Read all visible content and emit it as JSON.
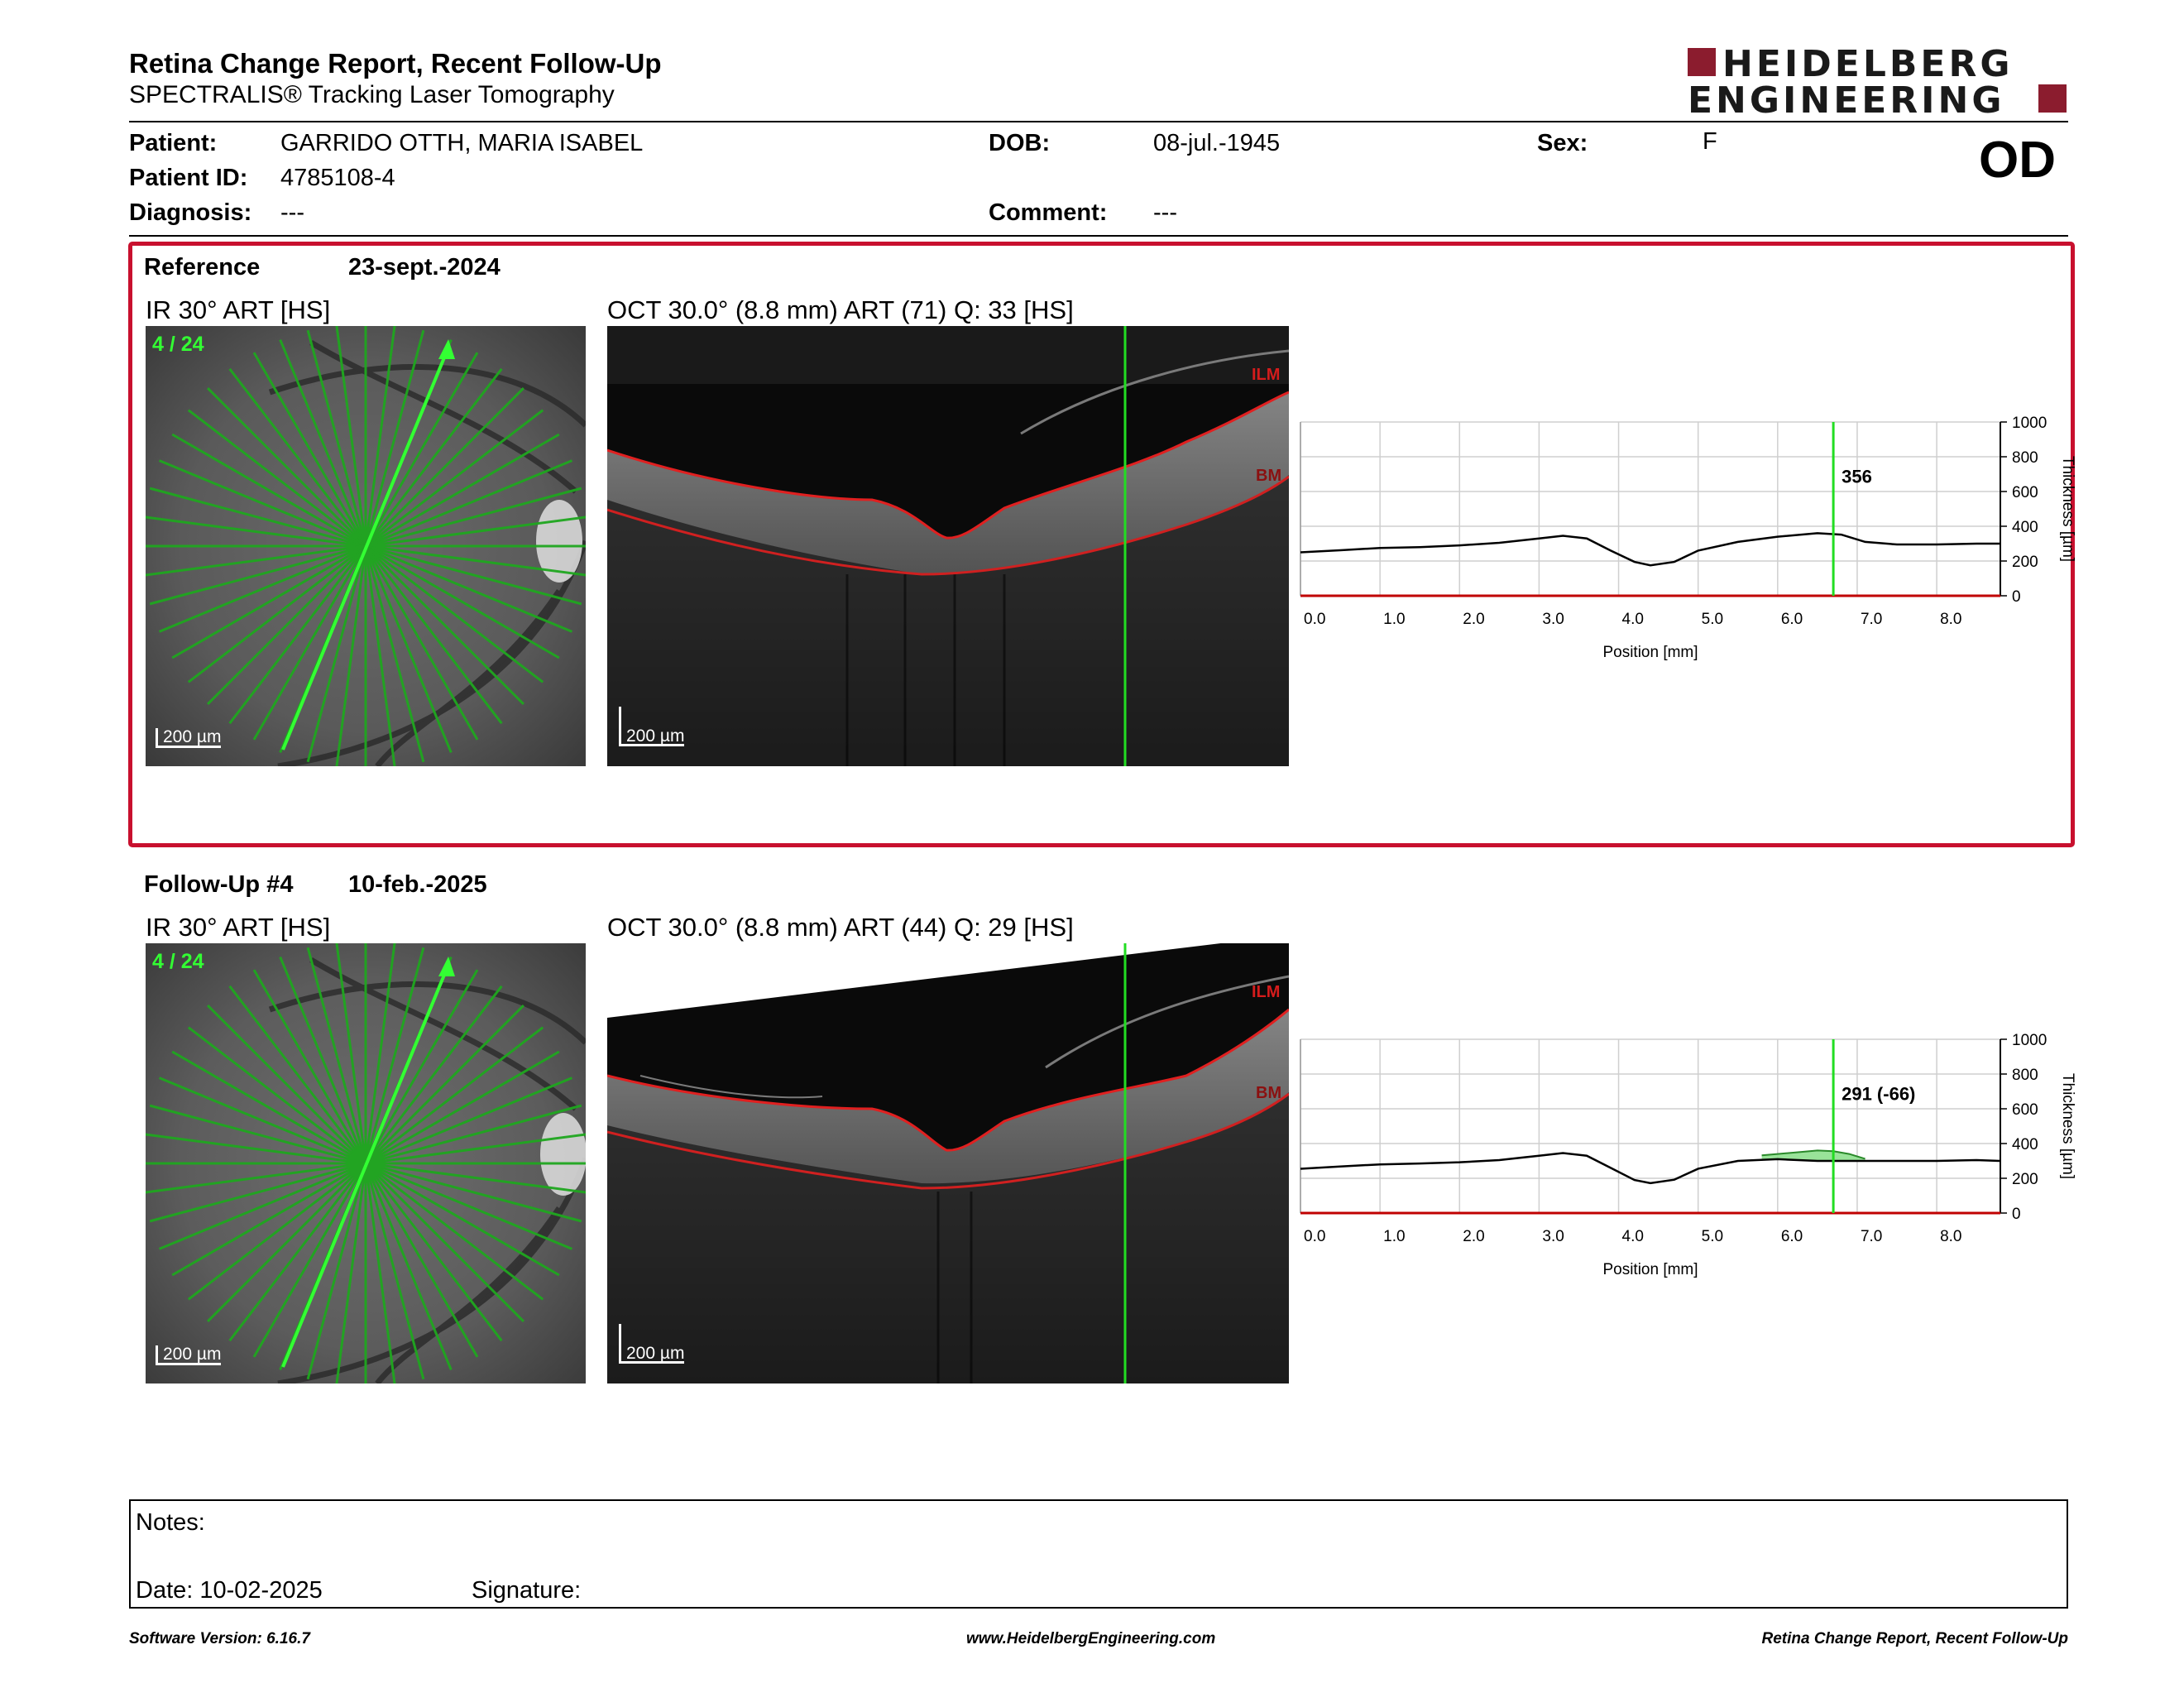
{
  "header": {
    "title": "Retina Change Report, Recent Follow-Up",
    "subtitle": "SPECTRALIS® Tracking Laser Tomography",
    "logo_line1": "HEIDELBERG",
    "logo_line2": "ENGINEERING",
    "eye": "OD"
  },
  "patient": {
    "patient_label": "Patient:",
    "patient_value": "GARRIDO OTTH, MARIA ISABEL",
    "dob_label": "DOB:",
    "dob_value": "08-jul.-1945",
    "sex_label": "Sex:",
    "sex_value": "F",
    "id_label": "Patient ID:",
    "id_value": "4785108-4",
    "diagnosis_label": "Diagnosis:",
    "diagnosis_value": "---",
    "comment_label": "Comment:",
    "comment_value": "---"
  },
  "reference": {
    "label": "Reference",
    "date": "23-sept.-2024",
    "ir_title": "IR 30° ART [HS]",
    "scan_counter": "4 / 24",
    "scale": "200 µm",
    "oct_title": "OCT 30.0° (8.8 mm) ART (71) Q: 33 [HS]",
    "ilm": "ILM",
    "bm": "BM",
    "readout": "356"
  },
  "followup": {
    "label": "Follow-Up #4",
    "date": "10-feb.-2025",
    "ir_title": "IR 30° ART [HS]",
    "scan_counter": "4 / 24",
    "scale": "200 µm",
    "oct_title": "OCT 30.0° (8.8 mm) ART (44) Q: 29 [HS]",
    "ilm": "ILM",
    "bm": "BM",
    "readout": "291 (-66)"
  },
  "chart_data": [
    {
      "type": "line",
      "xlabel": "Position [mm]",
      "ylabel": "Thickness [µm]",
      "xlim": [
        0,
        8.8
      ],
      "ylim": [
        0,
        1000
      ],
      "x_ticks": [
        "0.0",
        "1.0",
        "2.0",
        "3.0",
        "4.0",
        "5.0",
        "6.0",
        "7.0",
        "8.0"
      ],
      "y_ticks": [
        "0",
        "200",
        "400",
        "600",
        "800",
        "1000"
      ],
      "grid": true,
      "cursor_x": 6.7,
      "cursor_label": "356",
      "series": [
        {
          "x": [
            0,
            0.5,
            1.0,
            1.5,
            2.0,
            2.5,
            3.0,
            3.3,
            3.6,
            3.9,
            4.2,
            4.4,
            4.7,
            5.0,
            5.5,
            6.0,
            6.5,
            6.8,
            7.1,
            7.5,
            8.0,
            8.5,
            8.8
          ],
          "values": [
            250,
            262,
            275,
            280,
            290,
            305,
            330,
            345,
            330,
            260,
            195,
            175,
            195,
            260,
            310,
            340,
            360,
            352,
            310,
            295,
            295,
            300,
            300
          ]
        }
      ]
    },
    {
      "type": "line",
      "xlabel": "Position [mm]",
      "ylabel": "Thickness [µm]",
      "xlim": [
        0,
        8.8
      ],
      "ylim": [
        0,
        1000
      ],
      "x_ticks": [
        "0.0",
        "1.0",
        "2.0",
        "3.0",
        "4.0",
        "5.0",
        "6.0",
        "7.0",
        "8.0"
      ],
      "y_ticks": [
        "0",
        "200",
        "400",
        "600",
        "800",
        "1000"
      ],
      "grid": true,
      "cursor_x": 6.7,
      "cursor_label": "291 (-66)",
      "series": [
        {
          "x": [
            0,
            0.5,
            1.0,
            1.5,
            2.0,
            2.5,
            3.0,
            3.3,
            3.6,
            3.9,
            4.2,
            4.4,
            4.7,
            5.0,
            5.5,
            6.0,
            6.5,
            6.8,
            7.1,
            7.5,
            8.0,
            8.5,
            8.8
          ],
          "values": [
            255,
            268,
            280,
            285,
            292,
            305,
            330,
            345,
            330,
            260,
            190,
            172,
            192,
            255,
            300,
            310,
            300,
            300,
            300,
            300,
            300,
            305,
            300
          ]
        },
        {
          "x": [
            5.8,
            6.0,
            6.3,
            6.5,
            6.7,
            6.9,
            7.1
          ],
          "values": [
            332,
            340,
            352,
            360,
            356,
            340,
            312
          ]
        }
      ]
    }
  ],
  "notes": {
    "notes_label": "Notes:",
    "date_label": "Date: 10-02-2025",
    "signature_label": "Signature:"
  },
  "footer": {
    "version": "Software Version: 6.16.7",
    "website": "www.HeidelbergEngineering.com",
    "report_name": "Retina Change Report, Recent Follow-Up"
  }
}
